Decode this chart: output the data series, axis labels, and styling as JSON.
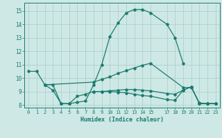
{
  "xlabel": "Humidex (Indice chaleur)",
  "bg_color": "#cde8e5",
  "grid_color": "#a8cec9",
  "line_color": "#1a7a6e",
  "xlim": [
    -0.5,
    23.5
  ],
  "ylim": [
    7.8,
    15.6
  ],
  "xticks": [
    0,
    1,
    2,
    3,
    4,
    5,
    6,
    7,
    8,
    9,
    10,
    11,
    12,
    13,
    14,
    15,
    17,
    18,
    19,
    20,
    21,
    22,
    23
  ],
  "yticks": [
    8,
    9,
    10,
    11,
    12,
    13,
    14,
    15
  ],
  "curve1_x": [
    0,
    1,
    2,
    3,
    4,
    5,
    6,
    7,
    8,
    9,
    10,
    11,
    12,
    13,
    14,
    15,
    17,
    18,
    19
  ],
  "curve1_y": [
    10.5,
    10.5,
    9.5,
    9.1,
    8.1,
    8.1,
    8.2,
    8.3,
    9.5,
    11.0,
    13.1,
    14.1,
    14.85,
    15.1,
    15.1,
    14.85,
    14.0,
    13.0,
    11.1
  ],
  "curve2_x": [
    2,
    8,
    9,
    10,
    11,
    12,
    13,
    14,
    15,
    19,
    20,
    21,
    22,
    23
  ],
  "curve2_y": [
    9.5,
    9.7,
    9.9,
    10.1,
    10.35,
    10.55,
    10.75,
    10.95,
    11.1,
    9.3,
    9.3,
    8.15,
    8.1,
    8.1
  ],
  "curve3_x": [
    2,
    3,
    4,
    5,
    6,
    7,
    8,
    9,
    10,
    11,
    12,
    13,
    14,
    15,
    17,
    18,
    19,
    20,
    21,
    22,
    23
  ],
  "curve3_y": [
    9.5,
    9.5,
    8.1,
    8.1,
    8.65,
    8.8,
    9.0,
    9.0,
    9.0,
    8.95,
    8.9,
    8.8,
    8.7,
    8.65,
    8.4,
    8.35,
    9.1,
    9.35,
    8.1,
    8.1,
    8.1
  ],
  "curve4_x": [
    8,
    9,
    10,
    11,
    12,
    13,
    14,
    15,
    17,
    18,
    19,
    20,
    21,
    22,
    23
  ],
  "curve4_y": [
    9.0,
    9.0,
    9.05,
    9.1,
    9.15,
    9.15,
    9.1,
    9.05,
    8.85,
    8.8,
    9.1,
    9.35,
    8.1,
    8.1,
    8.1
  ]
}
